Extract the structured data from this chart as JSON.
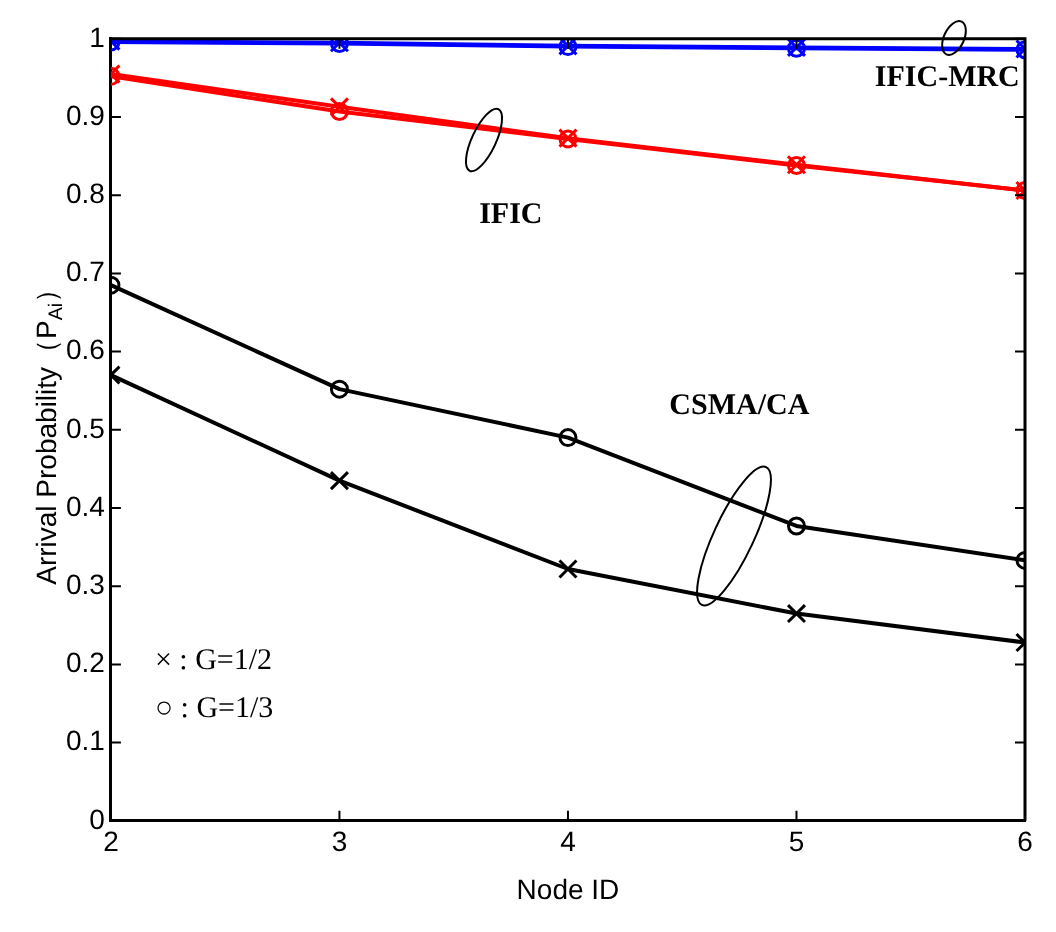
{
  "chart_data": {
    "type": "line",
    "xlabel": "Node ID",
    "ylabel": "Arrival Probability（P$_{Ai}$）",
    "x": [
      2,
      3,
      4,
      5,
      6
    ],
    "xlim": [
      2,
      6
    ],
    "xticks": [
      2,
      3,
      4,
      5,
      6
    ],
    "ylim": [
      0,
      1
    ],
    "yticks": [
      0,
      0.1,
      0.2,
      0.3,
      0.4,
      0.5,
      0.6,
      0.7,
      0.8,
      0.9,
      1
    ],
    "grid": false,
    "legend": false,
    "line_style": "solid",
    "series": [
      {
        "color": "#0000ff",
        "marker": "cross",
        "values": [
          0.997,
          0.995,
          0.991,
          0.989,
          0.987
        ]
      },
      {
        "color": "#0000ff",
        "marker": "circle",
        "values": [
          0.996,
          0.994,
          0.99,
          0.988,
          0.986
        ]
      },
      {
        "color": "#ff0000",
        "marker": "cross",
        "values": [
          0.955,
          0.913,
          0.873,
          0.839,
          0.806
        ]
      },
      {
        "color": "#ff0000",
        "marker": "circle",
        "values": [
          0.952,
          0.907,
          0.872,
          0.838,
          0.806
        ]
      },
      {
        "color": "#000000",
        "marker": "cross",
        "values": [
          0.57,
          0.435,
          0.322,
          0.265,
          0.228
        ]
      },
      {
        "color": "#000000",
        "marker": "circle",
        "values": [
          0.685,
          0.552,
          0.49,
          0.377,
          0.333
        ]
      }
    ],
    "annotations": [
      "IFIC-MRC",
      "IFIC",
      "CSMA/CA",
      "× : G=1/2",
      "○ : G=1/3"
    ]
  }
}
